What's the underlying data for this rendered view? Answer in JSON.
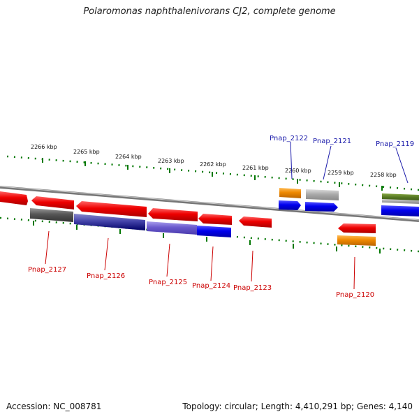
{
  "title": "Polaromonas naphthalenivorans CJ2, complete genome",
  "accession_text": "Accession: NC_008781",
  "summary_text": "Topology: circular; Length: 4,410,291 bp; Genes: 4,140",
  "scale_labels": [
    "2266 kbp",
    "2265 kbp",
    "2264 kbp",
    "2263 kbp",
    "2262 kbp",
    "2261 kbp",
    "2260 kbp",
    "2259 kbp",
    "2258 kbp"
  ],
  "genes_top": [
    "Pnap_2122",
    "Pnap_2121",
    "Pnap_2119"
  ],
  "genes_bottom": [
    "Pnap_2127",
    "Pnap_2126",
    "Pnap_2125",
    "Pnap_2124",
    "Pnap_2123",
    "Pnap_2120"
  ],
  "colors": {
    "red": "#ee0000",
    "blue": "#0000ee",
    "orange": "#ee8800",
    "grey": "#aaaaaa",
    "dark_grey": "#555555",
    "navy": "#000088",
    "slate_blue": "#6a5acd",
    "olive_green": "#557722",
    "tick_green": "#007700",
    "label_red": "#cc0000",
    "label_blue": "#1a1aaa"
  }
}
